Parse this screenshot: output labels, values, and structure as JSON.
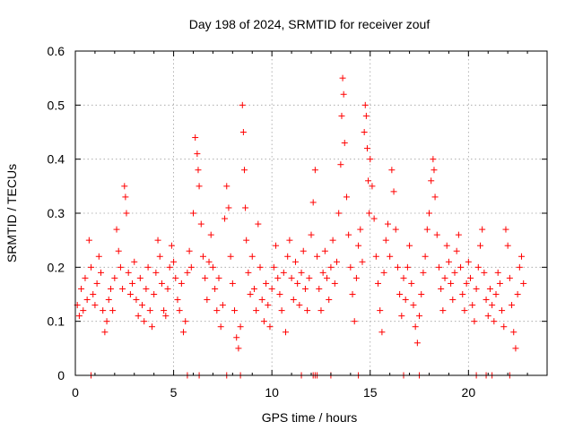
{
  "chart_data": {
    "type": "scatter",
    "title": "Day 198 of 2024, SRMTID for receiver zouf",
    "xlabel": "GPS time / hours",
    "ylabel": "SRMTID / TECUs",
    "xlim": [
      0,
      24
    ],
    "ylim": [
      0,
      0.6
    ],
    "x_ticks": [
      0,
      5,
      10,
      15,
      20
    ],
    "x_tick_labels": [
      "0",
      "5",
      "10",
      "15",
      "20"
    ],
    "y_ticks": [
      0,
      0.1,
      0.2,
      0.3,
      0.4,
      0.5,
      0.6
    ],
    "y_tick_labels": [
      "0",
      "0.1",
      "0.2",
      "0.3",
      "0.4",
      "0.5",
      "0.6"
    ],
    "grid": true,
    "marker": "+",
    "color": "#ff0000",
    "series": [
      {
        "name": "SRMTID",
        "points": [
          [
            0.1,
            0.13
          ],
          [
            0.2,
            0.11
          ],
          [
            0.3,
            0.16
          ],
          [
            0.4,
            0.12
          ],
          [
            0.5,
            0.18
          ],
          [
            0.6,
            0.14
          ],
          [
            0.7,
            0.25
          ],
          [
            0.8,
            0.2
          ],
          [
            0.9,
            0.15
          ],
          [
            1.0,
            0.13
          ],
          [
            1.1,
            0.17
          ],
          [
            1.2,
            0.22
          ],
          [
            1.3,
            0.19
          ],
          [
            1.4,
            0.12
          ],
          [
            1.5,
            0.08
          ],
          [
            1.6,
            0.1
          ],
          [
            1.7,
            0.14
          ],
          [
            1.8,
            0.16
          ],
          [
            1.9,
            0.12
          ],
          [
            2.0,
            0.18
          ],
          [
            2.1,
            0.27
          ],
          [
            2.2,
            0.23
          ],
          [
            2.3,
            0.2
          ],
          [
            2.4,
            0.16
          ],
          [
            2.5,
            0.35
          ],
          [
            2.55,
            0.33
          ],
          [
            2.6,
            0.3
          ],
          [
            2.7,
            0.19
          ],
          [
            2.8,
            0.15
          ],
          [
            2.9,
            0.17
          ],
          [
            3.0,
            0.21
          ],
          [
            3.1,
            0.14
          ],
          [
            3.2,
            0.11
          ],
          [
            3.3,
            0.18
          ],
          [
            3.4,
            0.13
          ],
          [
            3.5,
            0.1
          ],
          [
            3.6,
            0.16
          ],
          [
            3.7,
            0.2
          ],
          [
            3.8,
            0.12
          ],
          [
            3.9,
            0.09
          ],
          [
            4.0,
            0.15
          ],
          [
            4.1,
            0.19
          ],
          [
            4.2,
            0.25
          ],
          [
            4.3,
            0.22
          ],
          [
            4.4,
            0.17
          ],
          [
            4.5,
            0.12
          ],
          [
            4.6,
            0.11
          ],
          [
            4.7,
            0.16
          ],
          [
            4.8,
            0.2
          ],
          [
            4.9,
            0.24
          ],
          [
            5.0,
            0.21
          ],
          [
            5.1,
            0.18
          ],
          [
            5.2,
            0.14
          ],
          [
            5.3,
            0.12
          ],
          [
            5.4,
            0.17
          ],
          [
            5.5,
            0.08
          ],
          [
            5.6,
            0.1
          ],
          [
            5.7,
            0.19
          ],
          [
            5.8,
            0.23
          ],
          [
            5.9,
            0.2
          ],
          [
            6.0,
            0.3
          ],
          [
            6.1,
            0.44
          ],
          [
            6.2,
            0.41
          ],
          [
            6.25,
            0.38
          ],
          [
            6.3,
            0.35
          ],
          [
            6.4,
            0.28
          ],
          [
            6.5,
            0.22
          ],
          [
            6.6,
            0.18
          ],
          [
            6.7,
            0.14
          ],
          [
            6.8,
            0.21
          ],
          [
            6.9,
            0.26
          ],
          [
            7.0,
            0.2
          ],
          [
            7.1,
            0.16
          ],
          [
            7.2,
            0.12
          ],
          [
            7.3,
            0.18
          ],
          [
            7.4,
            0.09
          ],
          [
            7.5,
            0.13
          ],
          [
            7.6,
            0.29
          ],
          [
            7.7,
            0.35
          ],
          [
            7.8,
            0.31
          ],
          [
            7.9,
            0.22
          ],
          [
            8.0,
            0.17
          ],
          [
            8.1,
            0.12
          ],
          [
            8.2,
            0.07
          ],
          [
            8.3,
            0.05
          ],
          [
            8.4,
            0.09
          ],
          [
            8.5,
            0.5
          ],
          [
            8.55,
            0.45
          ],
          [
            8.6,
            0.38
          ],
          [
            8.65,
            0.31
          ],
          [
            8.7,
            0.25
          ],
          [
            8.8,
            0.19
          ],
          [
            8.9,
            0.15
          ],
          [
            9.0,
            0.22
          ],
          [
            9.1,
            0.16
          ],
          [
            9.2,
            0.12
          ],
          [
            9.3,
            0.28
          ],
          [
            9.4,
            0.2
          ],
          [
            9.5,
            0.14
          ],
          [
            9.6,
            0.1
          ],
          [
            9.7,
            0.17
          ],
          [
            9.8,
            0.13
          ],
          [
            9.9,
            0.09
          ],
          [
            10.0,
            0.16
          ],
          [
            10.1,
            0.2
          ],
          [
            10.2,
            0.24
          ],
          [
            10.3,
            0.18
          ],
          [
            10.4,
            0.15
          ],
          [
            10.5,
            0.12
          ],
          [
            10.6,
            0.19
          ],
          [
            10.7,
            0.08
          ],
          [
            10.8,
            0.22
          ],
          [
            10.9,
            0.25
          ],
          [
            11.0,
            0.18
          ],
          [
            11.1,
            0.14
          ],
          [
            11.2,
            0.21
          ],
          [
            11.3,
            0.17
          ],
          [
            11.4,
            0.13
          ],
          [
            11.5,
            0.19
          ],
          [
            11.6,
            0.23
          ],
          [
            11.7,
            0.16
          ],
          [
            11.8,
            0.12
          ],
          [
            11.9,
            0.18
          ],
          [
            12.0,
            0.26
          ],
          [
            12.1,
            0.32
          ],
          [
            12.2,
            0.38
          ],
          [
            12.3,
            0.22
          ],
          [
            12.4,
            0.16
          ],
          [
            12.5,
            0.12
          ],
          [
            12.6,
            0.19
          ],
          [
            12.7,
            0.23
          ],
          [
            12.8,
            0.18
          ],
          [
            12.9,
            0.14
          ],
          [
            13.0,
            0.2
          ],
          [
            13.1,
            0.25
          ],
          [
            13.2,
            0.17
          ],
          [
            13.3,
            0.21
          ],
          [
            13.4,
            0.3
          ],
          [
            13.5,
            0.39
          ],
          [
            13.55,
            0.48
          ],
          [
            13.6,
            0.55
          ],
          [
            13.65,
            0.52
          ],
          [
            13.7,
            0.43
          ],
          [
            13.8,
            0.33
          ],
          [
            13.9,
            0.26
          ],
          [
            14.0,
            0.2
          ],
          [
            14.1,
            0.15
          ],
          [
            14.2,
            0.1
          ],
          [
            14.3,
            0.18
          ],
          [
            14.4,
            0.24
          ],
          [
            14.5,
            0.27
          ],
          [
            14.6,
            0.21
          ],
          [
            14.7,
            0.45
          ],
          [
            14.75,
            0.5
          ],
          [
            14.8,
            0.48
          ],
          [
            14.85,
            0.42
          ],
          [
            14.9,
            0.36
          ],
          [
            14.95,
            0.3
          ],
          [
            15.0,
            0.4
          ],
          [
            15.1,
            0.35
          ],
          [
            15.2,
            0.29
          ],
          [
            15.3,
            0.22
          ],
          [
            15.4,
            0.17
          ],
          [
            15.5,
            0.12
          ],
          [
            15.6,
            0.08
          ],
          [
            15.7,
            0.19
          ],
          [
            15.8,
            0.25
          ],
          [
            15.9,
            0.28
          ],
          [
            16.0,
            0.22
          ],
          [
            16.1,
            0.38
          ],
          [
            16.2,
            0.34
          ],
          [
            16.3,
            0.27
          ],
          [
            16.4,
            0.2
          ],
          [
            16.5,
            0.15
          ],
          [
            16.6,
            0.11
          ],
          [
            16.7,
            0.18
          ],
          [
            16.8,
            0.14
          ],
          [
            16.9,
            0.2
          ],
          [
            17.0,
            0.24
          ],
          [
            17.1,
            0.17
          ],
          [
            17.2,
            0.13
          ],
          [
            17.3,
            0.09
          ],
          [
            17.4,
            0.06
          ],
          [
            17.5,
            0.11
          ],
          [
            17.6,
            0.15
          ],
          [
            17.7,
            0.19
          ],
          [
            17.8,
            0.22
          ],
          [
            17.9,
            0.27
          ],
          [
            18.0,
            0.3
          ],
          [
            18.1,
            0.36
          ],
          [
            18.2,
            0.4
          ],
          [
            18.25,
            0.38
          ],
          [
            18.3,
            0.33
          ],
          [
            18.4,
            0.26
          ],
          [
            18.5,
            0.2
          ],
          [
            18.6,
            0.16
          ],
          [
            18.7,
            0.12
          ],
          [
            18.8,
            0.18
          ],
          [
            18.9,
            0.24
          ],
          [
            19.0,
            0.21
          ],
          [
            19.1,
            0.17
          ],
          [
            19.2,
            0.14
          ],
          [
            19.3,
            0.19
          ],
          [
            19.4,
            0.23
          ],
          [
            19.5,
            0.26
          ],
          [
            19.6,
            0.2
          ],
          [
            19.7,
            0.15
          ],
          [
            19.8,
            0.12
          ],
          [
            19.9,
            0.17
          ],
          [
            20.0,
            0.21
          ],
          [
            20.1,
            0.18
          ],
          [
            20.2,
            0.13
          ],
          [
            20.3,
            0.1
          ],
          [
            20.4,
            0.16
          ],
          [
            20.5,
            0.2
          ],
          [
            20.6,
            0.24
          ],
          [
            20.7,
            0.27
          ],
          [
            20.8,
            0.19
          ],
          [
            20.9,
            0.14
          ],
          [
            21.0,
            0.11
          ],
          [
            21.1,
            0.16
          ],
          [
            21.2,
            0.13
          ],
          [
            21.3,
            0.1
          ],
          [
            21.4,
            0.15
          ],
          [
            21.5,
            0.19
          ],
          [
            21.6,
            0.17
          ],
          [
            21.7,
            0.12
          ],
          [
            21.8,
            0.09
          ],
          [
            21.9,
            0.27
          ],
          [
            22.0,
            0.24
          ],
          [
            22.1,
            0.18
          ],
          [
            22.2,
            0.13
          ],
          [
            22.3,
            0.08
          ],
          [
            22.4,
            0.05
          ],
          [
            22.5,
            0.15
          ],
          [
            22.6,
            0.2
          ],
          [
            22.7,
            0.22
          ],
          [
            22.8,
            0.17
          ],
          [
            0.8,
            0.0
          ],
          [
            5.7,
            0.0
          ],
          [
            6.3,
            0.0
          ],
          [
            7.7,
            0.0
          ],
          [
            8.4,
            0.0
          ],
          [
            11.5,
            0.0
          ],
          [
            12.1,
            0.0
          ],
          [
            12.2,
            0.0
          ],
          [
            12.3,
            0.0
          ],
          [
            13.0,
            0.0
          ],
          [
            14.4,
            0.0
          ],
          [
            16.7,
            0.0
          ],
          [
            17.5,
            0.0
          ],
          [
            20.4,
            0.0
          ],
          [
            20.9,
            0.0
          ],
          [
            21.2,
            0.0
          ],
          [
            22.1,
            0.0
          ]
        ]
      }
    ]
  }
}
